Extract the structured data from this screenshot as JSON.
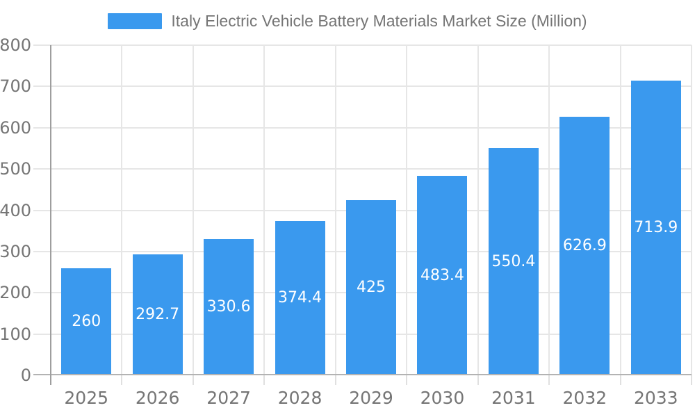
{
  "legend": {
    "label": "Italy Electric Vehicle Battery Materials Market Size (Million)"
  },
  "chart_data": {
    "type": "bar",
    "title": "Italy Electric Vehicle Battery Materials Market Size (Million)",
    "categories": [
      "2025",
      "2026",
      "2027",
      "2028",
      "2029",
      "2030",
      "2031",
      "2032",
      "2033"
    ],
    "values": [
      260,
      292.7,
      330.6,
      374.4,
      425,
      483.4,
      550.4,
      626.9,
      713.9
    ],
    "value_labels": [
      "260",
      "292.7",
      "330.6",
      "374.4",
      "425",
      "483.4",
      "550.4",
      "626.9",
      "713.9"
    ],
    "xlabel": "",
    "ylabel": "",
    "ylim": [
      0,
      800
    ],
    "ytick_labels": [
      "0",
      "100",
      "200",
      "300",
      "400",
      "500",
      "600",
      "700",
      "800"
    ],
    "grid": "on",
    "legend_position": "top-center",
    "colors": {
      "bar": "#3A99EE",
      "gridline": "#e6e6e6",
      "tick": "#e0e0e0",
      "axis_y": "#9e9e9e",
      "axis_x": "#b3b3b3",
      "label_text": "#757575",
      "value_text": "#ffffff",
      "background": "#ffffff"
    }
  }
}
